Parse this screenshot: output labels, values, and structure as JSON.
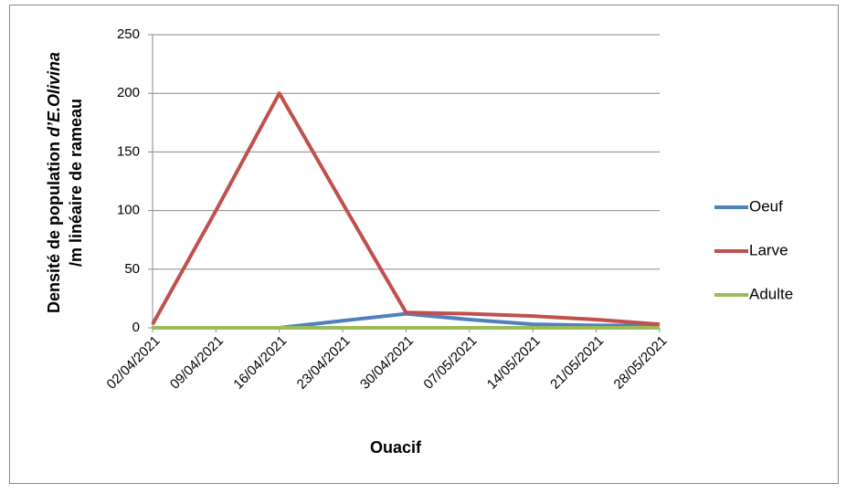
{
  "chart_data": {
    "type": "line",
    "ylabel": {
      "line1": "Densité de population ",
      "line1_italic": "d’E.Olivina",
      "line2": "/m linéaire de rameau"
    },
    "xlabel": "Ouacif",
    "categories": [
      "02/04/2021",
      "09/04/2021",
      "16/04/2021",
      "23/04/2021",
      "30/04/2021",
      "07/05/2021",
      "14/05/2021",
      "21/05/2021",
      "28/05/2021"
    ],
    "series": [
      {
        "name": "Oeuf",
        "color": "#4f81bd",
        "values": [
          0,
          0,
          0,
          6,
          12,
          7,
          3,
          2,
          2
        ]
      },
      {
        "name": "Larve",
        "color": "#c0504d",
        "values": [
          3,
          100,
          200,
          106,
          13,
          12,
          10,
          7,
          3
        ]
      },
      {
        "name": "Adulte",
        "color": "#9bbb59",
        "values": [
          0,
          0,
          0,
          0,
          0,
          0,
          0,
          0,
          0
        ]
      }
    ],
    "ylim": [
      0,
      250
    ],
    "yticks": [
      0,
      50,
      100,
      150,
      200,
      250
    ],
    "grid": true,
    "legend": "right"
  }
}
